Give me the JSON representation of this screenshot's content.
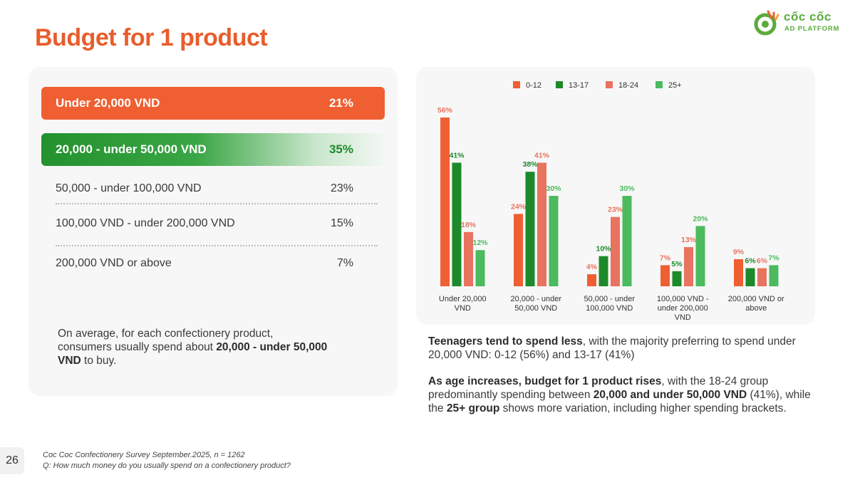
{
  "title": "Budget for 1 product",
  "logo": {
    "name": "cốc cốc",
    "sub": "AD PLATFORM"
  },
  "left": {
    "rows": [
      {
        "label": "Under 20,000 VND",
        "value": "21%"
      },
      {
        "label": "20,000 - under 50,000 VND",
        "value": "35%"
      },
      {
        "label": "50,000 - under 100,000 VND",
        "value": "23%"
      },
      {
        "label": "100,000 VND - under 200,000 VND",
        "value": "15%"
      },
      {
        "label": "200,000 VND or above",
        "value": "7%"
      }
    ],
    "summary": {
      "text1": "On average, for each confectionery product, consumers usually spend about ",
      "bold": "20,000 - under 50,000 VND",
      "text2": " to buy."
    }
  },
  "chart_data": {
    "type": "bar",
    "categories": [
      [
        "Under 20,000",
        "VND"
      ],
      [
        "20,000 - under",
        "50,000 VND"
      ],
      [
        "50,000 - under",
        "100,000 VND"
      ],
      [
        "100,000 VND -",
        "under 200,000",
        "VND"
      ],
      [
        "200,000 VND or",
        "above"
      ]
    ],
    "series": [
      {
        "name": "0-12",
        "color": "#ef5f32",
        "values": [
          56,
          24,
          4,
          7,
          9
        ]
      },
      {
        "name": "13-17",
        "color": "#1c8a2a",
        "values": [
          41,
          38,
          10,
          5,
          6
        ]
      },
      {
        "name": "18-24",
        "color": "#e8735f",
        "values": [
          18,
          41,
          23,
          13,
          6
        ]
      },
      {
        "name": "25+",
        "color": "#4cba5e",
        "values": [
          12,
          30,
          30,
          20,
          7
        ]
      }
    ],
    "label_colors": [
      "#e8735f",
      "#1c8a2a",
      "#e8735f",
      "#4cba5e"
    ],
    "unit": "%",
    "ylim": [
      0,
      56
    ],
    "legend": "top"
  },
  "insights": {
    "p1_bold": "Teenagers tend to spend less",
    "p1_text": ", with the majority preferring to spend under 20,000 VND: 0-12 (56%) and 13-17 (41%)",
    "p2_bold1": "As age increases, budget for 1 product rises",
    "p2_text1": ", with the 18-24 group predominantly spending between ",
    "p2_bold2": "20,000 and under 50,000 VND",
    "p2_text2": " (41%), while the ",
    "p2_bold3": "25+ group",
    "p2_text3": " shows more variation, including higher spending brackets."
  },
  "page_number": "26",
  "footnote": {
    "line1": "Coc Coc Confectionery Survey September.2025, n = 1262",
    "line2": "Q: How much money do you usually spend on a confectionery product?"
  }
}
